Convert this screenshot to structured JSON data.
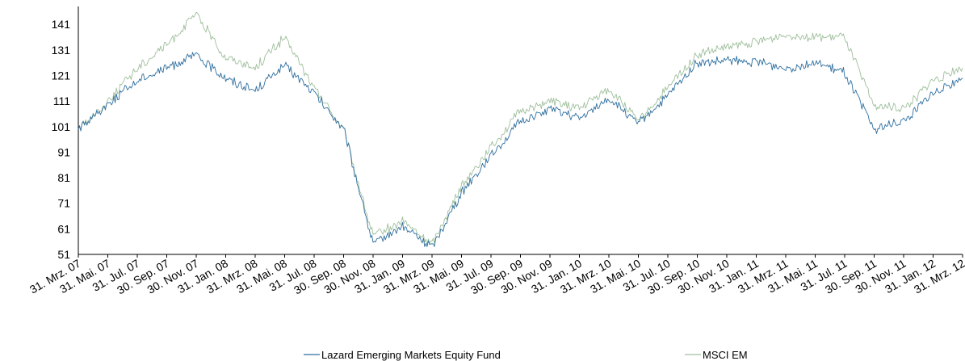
{
  "chart_data": {
    "type": "line",
    "title": "",
    "xlabel": "",
    "ylabel": "",
    "ylim": [
      51,
      148
    ],
    "yticks": [
      51,
      61,
      71,
      81,
      91,
      101,
      111,
      121,
      131,
      141
    ],
    "grid": false,
    "legend_position": "bottom",
    "categories": [
      "31. Mrz. 07",
      "31. Mai. 07",
      "31. Jul. 07",
      "30. Sep. 07",
      "30. Nov. 07",
      "31. Jan. 08",
      "31. Mrz. 08",
      "31. Mai. 08",
      "31. Jul. 08",
      "30. Sep. 08",
      "30. Nov. 08",
      "31. Jan. 09",
      "31. Mrz. 09",
      "31. Mai. 09",
      "31. Jul. 09",
      "30. Sep. 09",
      "30. Nov. 09",
      "31. Jan. 10",
      "31. Mrz. 10",
      "31. Mai. 10",
      "31. Jul. 10",
      "30. Sep. 10",
      "30. Nov. 10",
      "31. Jan. 11",
      "31. Mrz. 11",
      "31. Mai. 11",
      "31. Jul. 11",
      "30. Sep. 11",
      "30. Nov. 11",
      "31. Jan. 12",
      "31. Mrz. 12"
    ],
    "series": [
      {
        "name": "Lazard Emerging Markets Equity Fund",
        "color": "#2f6f9f",
        "values": [
          100,
          110,
          119,
          124,
          129,
          120,
          115,
          125,
          114,
          100,
          55,
          62,
          54,
          75,
          90,
          103,
          108,
          104,
          112,
          102,
          113,
          126,
          127,
          126,
          124,
          126,
          122,
          100,
          103,
          114,
          120
        ]
      },
      {
        "name": "MSCI EM",
        "color": "#9fbf9c",
        "values": [
          100,
          111,
          124,
          133,
          145,
          128,
          124,
          136,
          116,
          100,
          58,
          64,
          55,
          78,
          93,
          107,
          111,
          108,
          116,
          103,
          116,
          129,
          132,
          134,
          137,
          136,
          136,
          109,
          108,
          119,
          124
        ]
      }
    ]
  }
}
